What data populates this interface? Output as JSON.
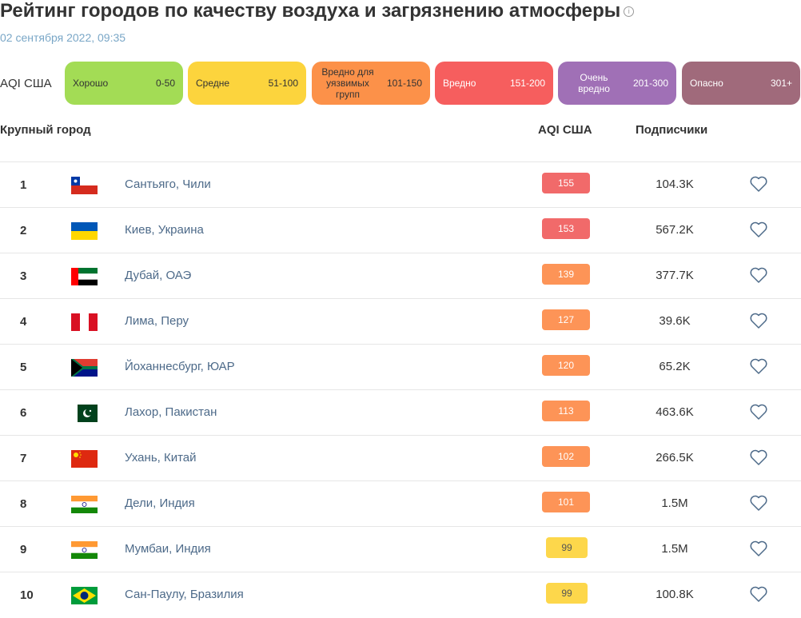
{
  "title": "Рейтинг городов по качеству воздуха и загрязнению атмосферы",
  "date": "02 сентября 2022, 09:35",
  "legend": {
    "label": "AQI США",
    "items": [
      {
        "name": "Хорошо",
        "range": "0-50",
        "color": "#a3dc55"
      },
      {
        "name": "Средне",
        "range": "51-100",
        "color": "#fcd43d"
      },
      {
        "name": "Вредно для уязвимых групп",
        "range": "101-150",
        "color": "#fc9149"
      },
      {
        "name": "Вредно",
        "range": "151-200",
        "color": "#f65e5e"
      },
      {
        "name": "Очень вредно",
        "range": "201-300",
        "color": "#a070b6"
      },
      {
        "name": "Опасно",
        "range": "301+",
        "color": "#a06a7b"
      }
    ]
  },
  "columns": {
    "city": "Крупный город",
    "aqi": "AQI США",
    "subs": "Подписчики"
  },
  "rows": [
    {
      "rank": "1",
      "flag": "chile",
      "city": "Сантьяго, Чили",
      "aqi": "155",
      "color": "#f16a6a",
      "subs": "104.3K"
    },
    {
      "rank": "2",
      "flag": "ukraine",
      "city": "Киев, Украина",
      "aqi": "153",
      "color": "#f16a6a",
      "subs": "567.2K"
    },
    {
      "rank": "3",
      "flag": "uae",
      "city": "Дубай, ОАЭ",
      "aqi": "139",
      "color": "#fd9457",
      "subs": "377.7K"
    },
    {
      "rank": "4",
      "flag": "peru",
      "city": "Лима, Перу",
      "aqi": "127",
      "color": "#fd9457",
      "subs": "39.6K"
    },
    {
      "rank": "5",
      "flag": "south-africa",
      "city": "Йоханнесбург, ЮАР",
      "aqi": "120",
      "color": "#fd9457",
      "subs": "65.2K"
    },
    {
      "rank": "6",
      "flag": "pakistan",
      "city": "Лахор, Пакистан",
      "aqi": "113",
      "color": "#fd9457",
      "subs": "463.6K"
    },
    {
      "rank": "7",
      "flag": "china",
      "city": "Ухань, Китай",
      "aqi": "102",
      "color": "#fd9457",
      "subs": "266.5K"
    },
    {
      "rank": "8",
      "flag": "india",
      "city": "Дели, Индия",
      "aqi": "101",
      "color": "#fd9457",
      "subs": "1.5M"
    },
    {
      "rank": "9",
      "flag": "india",
      "city": "Мумбаи, Индия",
      "aqi": "99",
      "color": "#fdd74b",
      "subs": "1.5M"
    },
    {
      "rank": "10",
      "flag": "brazil",
      "city": "Сан-Паулу, Бразилия",
      "aqi": "99",
      "color": "#fdd74b",
      "subs": "100.8K"
    }
  ]
}
